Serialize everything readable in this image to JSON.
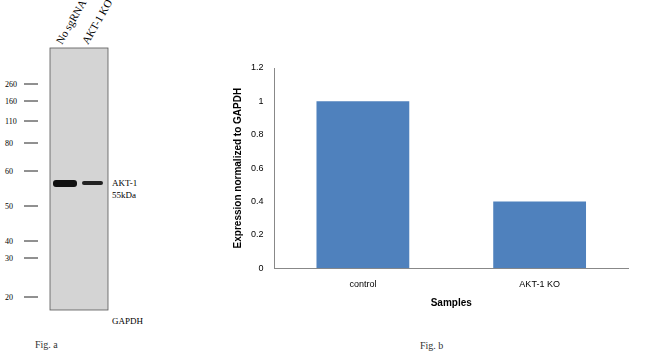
{
  "blot": {
    "lanes": [
      "No sgRNA",
      "AKT-1 KO"
    ],
    "markers": [
      260,
      160,
      110,
      80,
      60,
      50,
      40,
      30,
      20
    ],
    "band_label": "AKT-1",
    "band_size": "55kDa",
    "loading_label": "GAPDH",
    "caption": "Fig. a"
  },
  "chart_data": {
    "type": "bar",
    "caption": "Fig. b",
    "x_label": "Samples",
    "y_label": "Expression normalized to GAPDH",
    "categories": [
      "control",
      "AKT-1 KO"
    ],
    "values": [
      1,
      0.4
    ],
    "color": "#4f81bd",
    "ylim": [
      0,
      1.2
    ],
    "yticks": [
      0,
      0.2,
      0.4,
      0.6,
      0.8,
      1,
      1.2
    ],
    "grid": false
  }
}
